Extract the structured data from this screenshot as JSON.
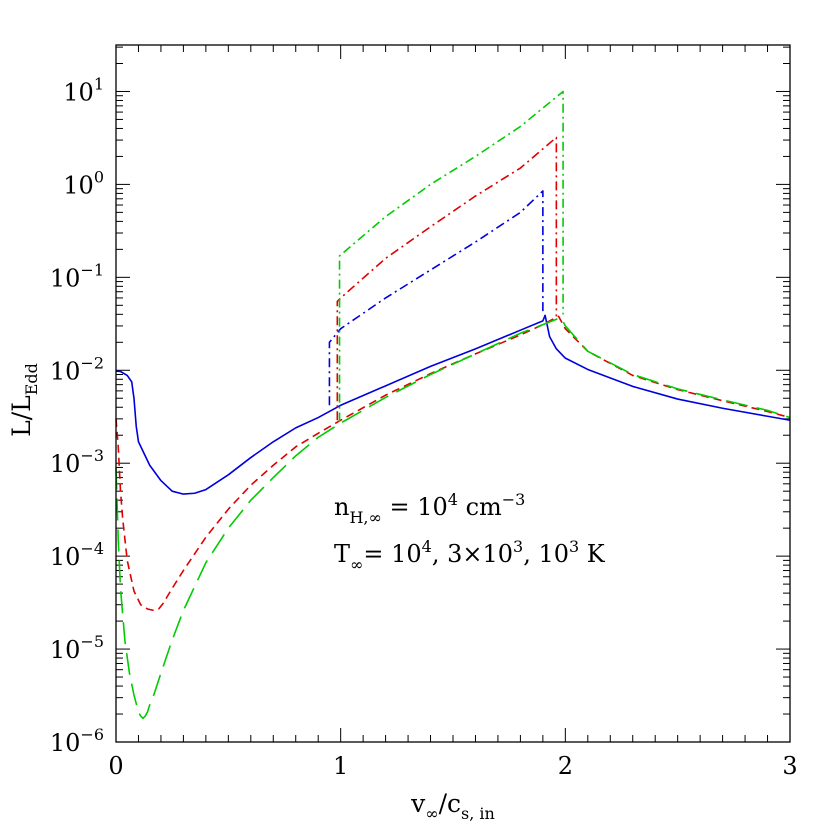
{
  "chart_data": {
    "type": "line",
    "xlabel": {
      "main": "v",
      "sub1": "∞",
      "mid": "/c",
      "sub2": "s, in"
    },
    "ylabel": {
      "main": "L/L",
      "sub": "Edd"
    },
    "xlim": [
      0,
      3
    ],
    "ylim_log10": [
      -6,
      1.5
    ],
    "y_scale": "log",
    "x_ticks": [
      {
        "value": 0,
        "label": "0"
      },
      {
        "value": 1,
        "label": "1"
      },
      {
        "value": 2,
        "label": "2"
      },
      {
        "value": 3,
        "label": "3"
      }
    ],
    "y_ticks": [
      {
        "exp": -6,
        "base": "10",
        "sup": "−6"
      },
      {
        "exp": -5,
        "base": "10",
        "sup": "−5"
      },
      {
        "exp": -4,
        "base": "10",
        "sup": "−4"
      },
      {
        "exp": -3,
        "base": "10",
        "sup": "−3"
      },
      {
        "exp": -2,
        "base": "10",
        "sup": "−2"
      },
      {
        "exp": -1,
        "base": "10",
        "sup": "−1"
      },
      {
        "exp": 0,
        "base": "10",
        "sup": "0"
      },
      {
        "exp": 1,
        "base": "10",
        "sup": "1"
      }
    ],
    "annotations": [
      {
        "parts": [
          {
            "t": "n",
            "k": "n"
          },
          {
            "t": "H,∞",
            "k": "sub"
          },
          {
            "t": " = 10",
            "k": "n"
          },
          {
            "t": "4",
            "k": "sup"
          },
          {
            "t": " cm",
            "k": "n"
          },
          {
            "t": "−3",
            "k": "sup"
          }
        ]
      },
      {
        "parts": [
          {
            "t": "T",
            "k": "n"
          },
          {
            "t": "∞",
            "k": "sub"
          },
          {
            "t": "= 10",
            "k": "n"
          },
          {
            "t": "4",
            "k": "sup"
          },
          {
            "t": ", 3×10",
            "k": "n"
          },
          {
            "t": "3",
            "k": "sup"
          },
          {
            "t": ", 10",
            "k": "n"
          },
          {
            "t": "3",
            "k": "sup"
          },
          {
            "t": " K",
            "k": "n"
          }
        ]
      }
    ],
    "series": [
      {
        "color": "#0000dd",
        "style": "solid",
        "x": [
          0.0,
          0.02,
          0.05,
          0.07,
          0.08,
          0.09,
          0.1,
          0.15,
          0.2,
          0.25,
          0.3,
          0.35,
          0.4,
          0.5,
          0.6,
          0.7,
          0.8,
          0.9,
          1.0,
          1.2,
          1.4,
          1.6,
          1.8,
          1.9,
          1.91,
          1.93,
          1.96,
          2.0,
          2.1,
          2.3,
          2.5,
          2.7,
          2.9,
          3.0
        ],
        "y": [
          0.0098,
          0.0097,
          0.0088,
          0.0075,
          0.005,
          0.0025,
          0.0017,
          0.00095,
          0.00065,
          0.0005,
          0.000465,
          0.000475,
          0.00052,
          0.00075,
          0.00115,
          0.0017,
          0.0024,
          0.0031,
          0.0042,
          0.0068,
          0.011,
          0.017,
          0.027,
          0.034,
          0.039,
          0.023,
          0.017,
          0.0135,
          0.0102,
          0.0067,
          0.0049,
          0.0039,
          0.0032,
          0.0029
        ]
      },
      {
        "color": "#e00000",
        "style": "dashed",
        "x": [
          0.0,
          0.01,
          0.02,
          0.03,
          0.05,
          0.08,
          0.11,
          0.14,
          0.17,
          0.19,
          0.21,
          0.25,
          0.3,
          0.4,
          0.5,
          0.6,
          0.7,
          0.8,
          0.9,
          1.0,
          1.2,
          1.4,
          1.6,
          1.8,
          1.9,
          1.95,
          1.97,
          2.0,
          2.1,
          2.3,
          2.5,
          2.7,
          2.9,
          3.0
        ],
        "y": [
          0.003,
          0.0015,
          0.0005,
          0.00025,
          9e-05,
          4.2e-05,
          3e-05,
          2.7e-05,
          2.6e-05,
          2.7e-05,
          3.1e-05,
          4.5e-05,
          7e-05,
          0.00016,
          0.00032,
          0.00058,
          0.00095,
          0.0015,
          0.0021,
          0.0029,
          0.0054,
          0.0092,
          0.015,
          0.024,
          0.031,
          0.036,
          0.038,
          0.028,
          0.016,
          0.0088,
          0.0062,
          0.0047,
          0.0036,
          0.0031
        ]
      },
      {
        "color": "#00cc00",
        "style": "longdash",
        "x": [
          0.0,
          0.01,
          0.02,
          0.04,
          0.06,
          0.08,
          0.1,
          0.11,
          0.12,
          0.13,
          0.14,
          0.15,
          0.17,
          0.2,
          0.25,
          0.3,
          0.4,
          0.5,
          0.6,
          0.7,
          0.8,
          0.9,
          1.0,
          1.2,
          1.4,
          1.6,
          1.8,
          1.9,
          1.98,
          2.0,
          2.1,
          2.3,
          2.5,
          2.7,
          2.9,
          3.0
        ],
        "y": [
          0.0009,
          0.00015,
          4.5e-05,
          1.2e-05,
          5.5e-06,
          3.2e-06,
          2.1e-06,
          1.9e-06,
          1.8e-06,
          1.9e-06,
          2.1e-06,
          2.5e-06,
          3.3e-06,
          5.5e-06,
          1.25e-05,
          2.6e-05,
          8.5e-05,
          0.0002,
          0.0004,
          0.0007,
          0.0012,
          0.0019,
          0.0027,
          0.0051,
          0.009,
          0.015,
          0.025,
          0.031,
          0.037,
          0.03,
          0.016,
          0.009,
          0.0063,
          0.0048,
          0.0037,
          0.0031
        ]
      },
      {
        "color": "#0000dd",
        "style": "dashdot",
        "x": [
          0.95,
          0.95,
          1.0,
          1.2,
          1.4,
          1.6,
          1.8,
          1.9,
          1.9
        ],
        "y": [
          0.0042,
          0.02,
          0.028,
          0.06,
          0.12,
          0.24,
          0.5,
          0.85,
          0.04
        ]
      },
      {
        "color": "#e00000",
        "style": "dashdot",
        "x": [
          0.985,
          0.985,
          1.0,
          1.2,
          1.4,
          1.6,
          1.8,
          1.96,
          1.96
        ],
        "y": [
          0.0029,
          0.055,
          0.06,
          0.16,
          0.35,
          0.75,
          1.5,
          3.2,
          0.038
        ]
      },
      {
        "color": "#00cc00",
        "style": "dashdot",
        "x": [
          0.995,
          0.995,
          1.2,
          1.4,
          1.6,
          1.8,
          1.99,
          1.99
        ],
        "y": [
          0.0028,
          0.17,
          0.45,
          1.0,
          2.0,
          4.2,
          10.0,
          0.04
        ]
      }
    ]
  }
}
